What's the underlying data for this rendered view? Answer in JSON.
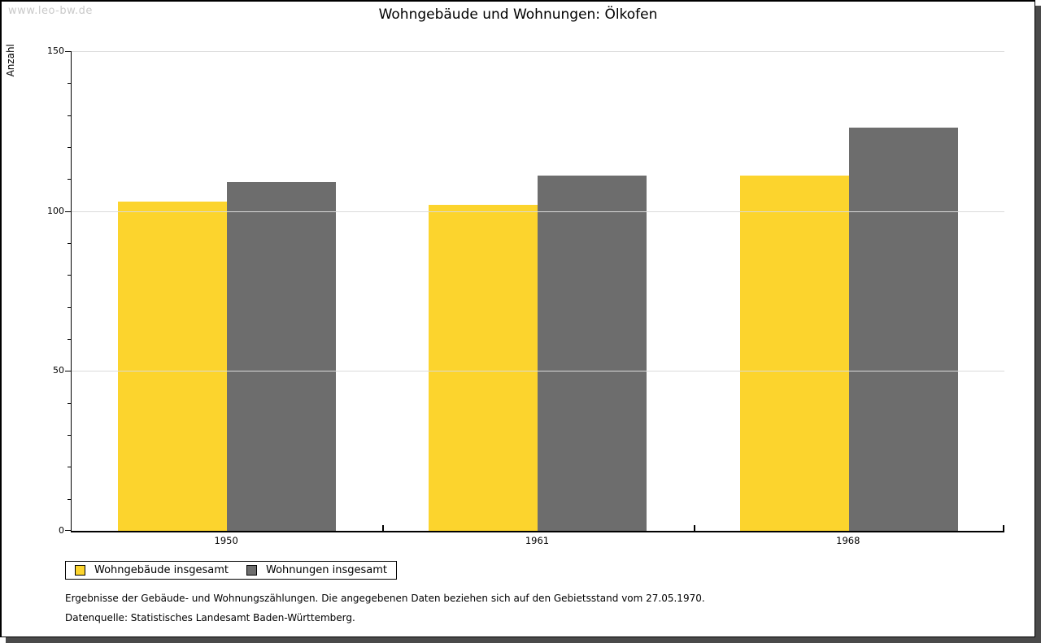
{
  "watermark": "www.leo-bw.de",
  "chart_data": {
    "type": "bar",
    "title": "Wohngebäude und Wohnungen: Ölkofen",
    "ylabel": "Anzahl",
    "xlabel": "",
    "categories": [
      "1950",
      "1961",
      "1968"
    ],
    "series": [
      {
        "name": "Wohngebäude insgesamt",
        "color": "#FCD42D",
        "values": [
          103,
          102,
          111
        ]
      },
      {
        "name": "Wohnungen insgesamt",
        "color": "#6D6D6D",
        "values": [
          109,
          111,
          126
        ]
      }
    ],
    "ylim": [
      0,
      150
    ],
    "ytick_major": 50,
    "ytick_minor": 10,
    "grid": true,
    "legend_position": "bottom-left"
  },
  "footer": {
    "note": "Ergebnisse der Gebäude- und Wohnungszählungen. Die angegebenen Daten beziehen sich auf den Gebietsstand vom 27.05.1970.",
    "source": "Datenquelle: Statistisches Landesamt Baden-Württemberg."
  },
  "colors": {
    "grid": "#DADADA",
    "axis": "#000000",
    "watermark": "#C9C9C9",
    "frame_shadow": "#4A4A4A"
  }
}
